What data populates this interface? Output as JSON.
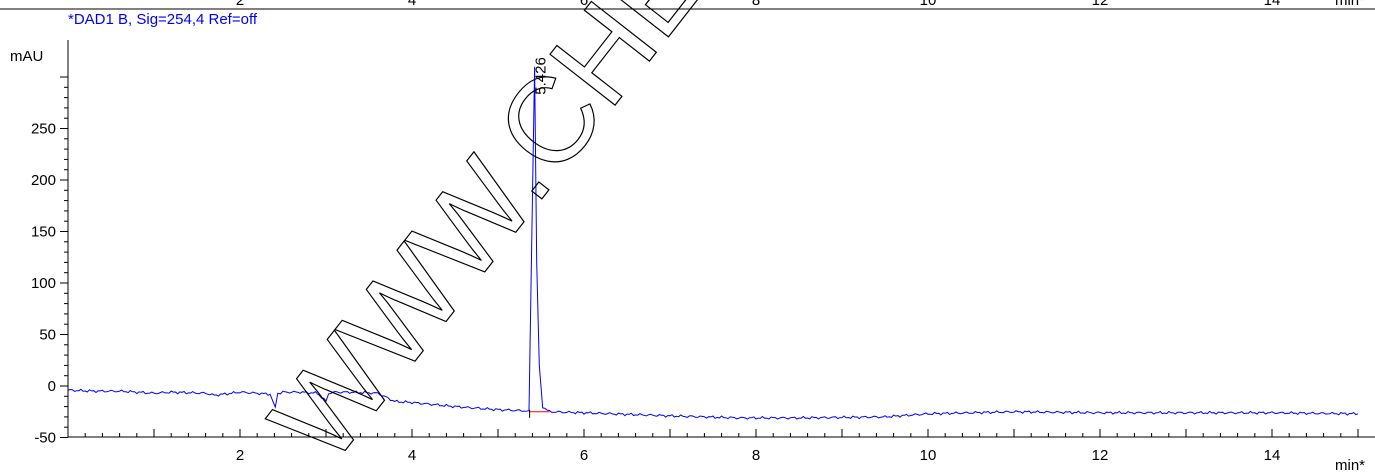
{
  "signal_label": "*DAD1 B, Sig=254,4 Ref=off",
  "watermark": "WWW.CHEMIETR",
  "top_axis_partial_labels": [
    "2",
    "4",
    "6",
    "8",
    "10",
    "12",
    "14",
    "min*"
  ],
  "colors": {
    "trace": "#0000ff",
    "baseline_marker": "#ff0000",
    "axes": "#000000",
    "watermark": "#000000"
  },
  "chart_data": {
    "type": "line",
    "xlabel": "min*",
    "ylabel": "mAU",
    "xlim": [
      0,
      15.0
    ],
    "ylim": [
      -50,
      300
    ],
    "x_ticks": [
      2,
      4,
      6,
      8,
      10,
      12,
      14
    ],
    "y_ticks": [
      -50,
      0,
      50,
      100,
      150,
      200,
      250
    ],
    "x_tick_labels": [
      "2",
      "4",
      "6",
      "8",
      "10",
      "12",
      "14"
    ],
    "y_tick_labels": [
      "-50",
      "0",
      "50",
      "100",
      "150",
      "200",
      "250"
    ],
    "grid": false,
    "series": [
      {
        "name": "*DAD1 B, Sig=254,4 Ref=off",
        "x": [
          0.0,
          0.3,
          0.6,
          1.0,
          1.2,
          1.6,
          1.7,
          2.0,
          2.2,
          2.35,
          2.41,
          2.44,
          2.5,
          2.7,
          2.9,
          3.0,
          3.03,
          3.1,
          3.3,
          3.6,
          3.8,
          4.0,
          4.5,
          5.0,
          5.3,
          5.36,
          5.4,
          5.426,
          5.45,
          5.48,
          5.52,
          5.6,
          6.0,
          7.0,
          7.8,
          8.5,
          9.5,
          10.0,
          11.0,
          12.0,
          13.0,
          14.0,
          15.0
        ],
        "y": [
          -4,
          -5,
          -5,
          -7,
          -6,
          -7,
          -9,
          -6,
          -7,
          -8,
          -21,
          -7,
          -6,
          -6,
          -7,
          -15,
          -7,
          -6,
          -6,
          -7,
          -15,
          -16,
          -20,
          -23,
          -24,
          -24,
          180,
          310,
          120,
          20,
          -20,
          -25,
          -26,
          -29,
          -31,
          -31,
          -30,
          -27,
          -25,
          -26,
          -26,
          -26,
          -27
        ]
      }
    ],
    "annotations": [
      {
        "x": 5.426,
        "y": 310,
        "text": "5.426"
      }
    ],
    "integration_baseline": {
      "x": [
        5.36,
        5.6
      ],
      "y": [
        -25,
        -25
      ]
    }
  }
}
